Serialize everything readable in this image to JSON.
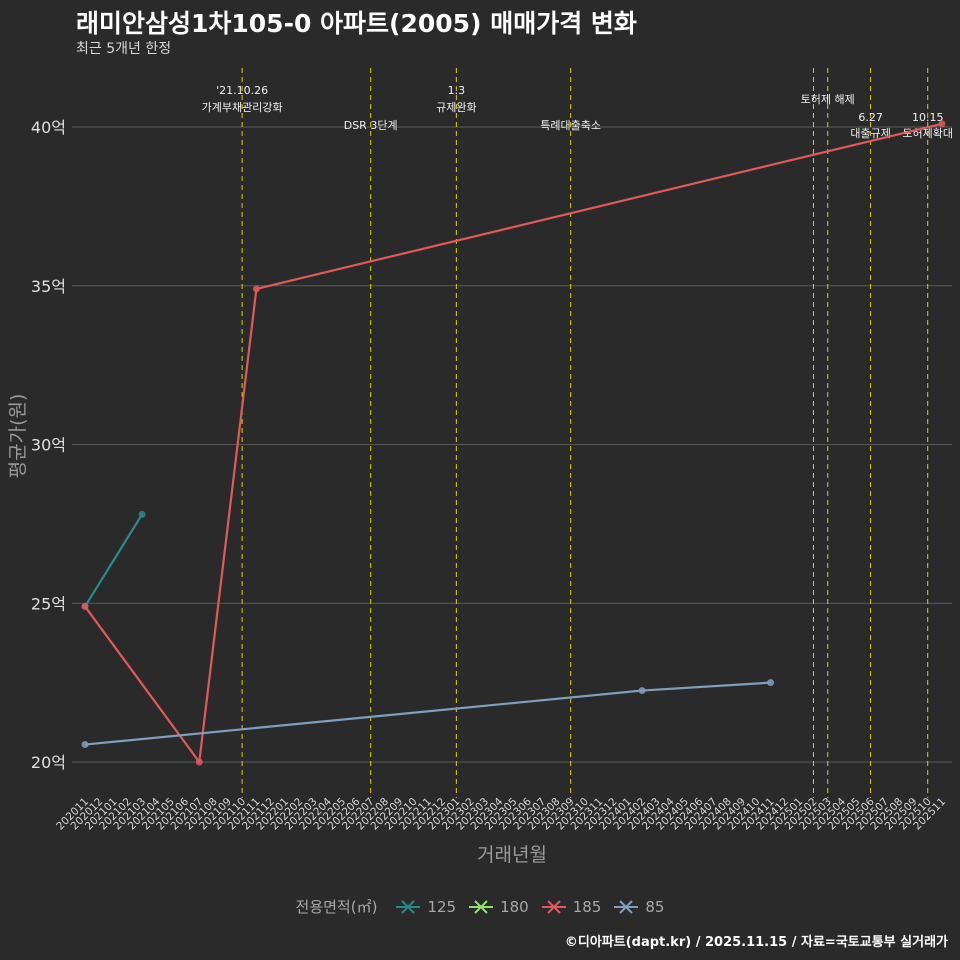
{
  "title": "래미안삼성1차105-0 아파트(2005) 매매가격 변화",
  "subtitle": "최근 5개년 한정",
  "caption": "©디아파트(dapt.kr) / 2025.11.15 / 자료=국토교통부 실거래가",
  "colors": {
    "background": "#2b2a2b",
    "grid": "#5a5a5a",
    "event_line": "#d4d400",
    "s125": "#2a8a8a",
    "s180": "#90e070",
    "s185": "#e05a5a",
    "s85": "#7f9fbf"
  },
  "chart_data": {
    "type": "line",
    "title": "래미안삼성1차105-0 아파트(2005) 매매가격 변화",
    "xlabel": "거래년월",
    "ylabel": "평균가(원)",
    "ylim": [
      19,
      42
    ],
    "y_ticks": [
      20,
      25,
      30,
      35,
      40
    ],
    "y_tick_labels": [
      "20억",
      "25억",
      "30억",
      "35억",
      "40억"
    ],
    "x_categories": [
      "202011",
      "202012",
      "202101",
      "202102",
      "202103",
      "202104",
      "202105",
      "202106",
      "202107",
      "202108",
      "202109",
      "202110",
      "202111",
      "202112",
      "202201",
      "202202",
      "202203",
      "202204",
      "202205",
      "202206",
      "202207",
      "202208",
      "202209",
      "202210",
      "202211",
      "202212",
      "202301",
      "202302",
      "202303",
      "202304",
      "202305",
      "202306",
      "202307",
      "202308",
      "202309",
      "202310",
      "202311",
      "202312",
      "202401",
      "202402",
      "202403",
      "202404",
      "202405",
      "202406",
      "202407",
      "202408",
      "202409",
      "202410",
      "202411",
      "202412",
      "202501",
      "202502",
      "202503",
      "202504",
      "202505",
      "202506",
      "202507",
      "202508",
      "202509",
      "202510",
      "202511"
    ],
    "legend_title": "전용면적(㎡)",
    "series": [
      {
        "name": "125",
        "color_key": "s125",
        "points": [
          [
            "202011",
            24.9
          ],
          [
            "202103",
            27.8
          ]
        ]
      },
      {
        "name": "180",
        "color_key": "s180",
        "points": []
      },
      {
        "name": "185",
        "color_key": "s185",
        "points": [
          [
            "202011",
            24.9
          ],
          [
            "202107",
            20.0
          ],
          [
            "202111",
            34.9
          ],
          [
            "202511",
            40.1
          ]
        ]
      },
      {
        "name": "85",
        "color_key": "s85",
        "points": [
          [
            "202011",
            20.55
          ],
          [
            "202402",
            22.25
          ],
          [
            "202411",
            22.5
          ]
        ]
      }
    ],
    "events": [
      {
        "month": "202110",
        "line1": "'21.10.26",
        "line2": "가계부채관리강화",
        "tier": "top"
      },
      {
        "month": "202207",
        "line1": "",
        "line2": "DSR 3단계",
        "tier": "low"
      },
      {
        "month": "202301",
        "line1": "1.3",
        "line2": "규제완화",
        "tier": "top"
      },
      {
        "month": "202309",
        "line1": "",
        "line2": "특례대출축소",
        "tier": "low"
      },
      {
        "month": "202502",
        "line1": "",
        "line2": "",
        "tier": "none"
      },
      {
        "month": "202503",
        "line1": "토허제 해제",
        "line2": "",
        "tier": "mid"
      },
      {
        "month": "202506",
        "line1": "6.27",
        "line2": "대출규제",
        "tier": "low2"
      },
      {
        "month": "202510",
        "line1": "10.15",
        "line2": "토허제확대",
        "tier": "low2"
      }
    ]
  }
}
